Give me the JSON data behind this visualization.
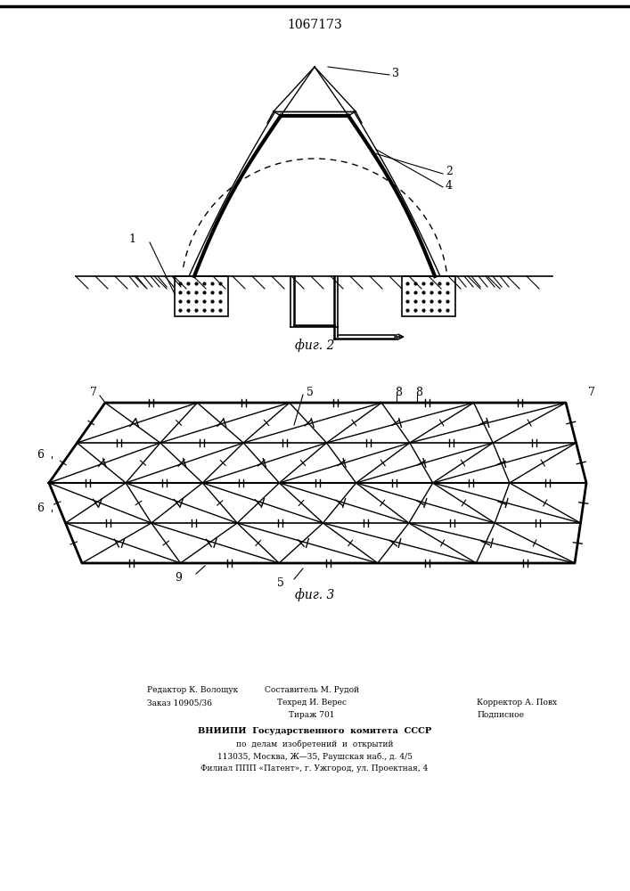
{
  "title": "1067173",
  "bg_color": "#ffffff",
  "line_color": "#000000",
  "fig2_caption": "фиг. 2",
  "fig3_caption": "фиг. 3",
  "footer_left": [
    "Редактор К. Волощук",
    "Заказ 10905/36"
  ],
  "footer_mid": [
    "Составитель М. Рудой",
    "Техред И. Верес",
    "Тираж 701"
  ],
  "footer_right": [
    "Корректор А. Повх",
    "Подписное"
  ],
  "footer_center": [
    "ВНИИПИ  Государственного  комитета  СССР",
    "по  делам  изобретений  и  открытий",
    "113035, Москва, Ж—35, Раушская наб., д. 4/5",
    "Филиал ППП «Патент», г. Ужгород, ул. Проектная, 4"
  ]
}
